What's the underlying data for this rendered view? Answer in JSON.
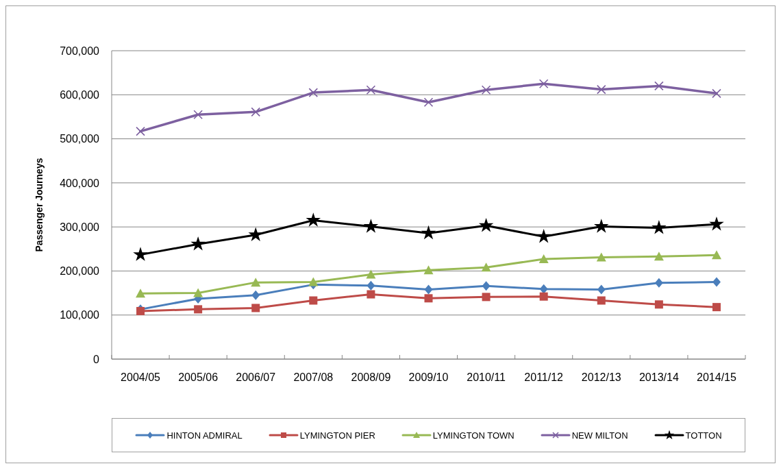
{
  "chart_data": {
    "type": "line",
    "categories": [
      "2004/05",
      "2005/06",
      "2006/07",
      "2007/08",
      "2008/09",
      "2009/10",
      "2010/11",
      "2011/12",
      "2012/13",
      "2013/14",
      "2014/15"
    ],
    "series": [
      {
        "name": "HINTON ADMIRAL",
        "color": "#4a7ebb",
        "marker": "diamond",
        "values": [
          113000,
          137000,
          145000,
          169000,
          167000,
          158000,
          166000,
          159000,
          158000,
          173000,
          175000
        ]
      },
      {
        "name": "LYMINGTON PIER",
        "color": "#be4b48",
        "marker": "square",
        "values": [
          109000,
          113000,
          116000,
          133000,
          147000,
          138000,
          141000,
          142000,
          133000,
          124000,
          118000
        ]
      },
      {
        "name": "LYMINGTON TOWN",
        "color": "#98b954",
        "marker": "triangle",
        "values": [
          149000,
          150000,
          174000,
          175000,
          192000,
          202000,
          208000,
          227000,
          231000,
          233000,
          236000
        ]
      },
      {
        "name": "NEW MILTON",
        "color": "#7d60a0",
        "marker": "cross",
        "values": [
          517000,
          555000,
          561000,
          605000,
          611000,
          583000,
          611000,
          625000,
          612000,
          620000,
          603000
        ]
      },
      {
        "name": "TOTTON",
        "color": "#000000",
        "marker": "star",
        "values": [
          237000,
          261000,
          282000,
          315000,
          301000,
          286000,
          303000,
          278000,
          301000,
          298000,
          306000
        ]
      }
    ],
    "ylabel": "Passenger Journeys",
    "ylim": [
      0,
      700000
    ],
    "yticks": [
      0,
      {
        "value": 100000,
        "label": "100,000"
      },
      {
        "value": 200000,
        "label": "200,000"
      },
      {
        "value": 300000,
        "label": "300,000"
      },
      {
        "value": 400000,
        "label": "400,000"
      },
      {
        "value": 500000,
        "label": "500,000"
      },
      {
        "value": 600000,
        "label": "600,000"
      },
      {
        "value": 700000,
        "label": "700,000"
      }
    ],
    "grid": "y",
    "legend": "bottom",
    "line_style": "solid"
  }
}
